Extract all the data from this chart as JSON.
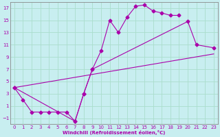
{
  "xlabel": "Windchill (Refroidissement éolien,°C)",
  "bg_color": "#c8eef0",
  "grid_color": "#aaddcc",
  "line_color": "#aa00aa",
  "xlim": [
    -0.5,
    23.5
  ],
  "ylim": [
    -2,
    18
  ],
  "xticks": [
    0,
    1,
    2,
    3,
    4,
    5,
    6,
    7,
    8,
    9,
    10,
    11,
    12,
    13,
    14,
    15,
    16,
    17,
    18,
    19,
    20,
    21,
    22,
    23
  ],
  "yticks": [
    -1,
    1,
    3,
    5,
    7,
    9,
    11,
    13,
    15,
    17
  ],
  "line1_x": [
    0,
    1,
    2,
    3,
    4,
    5,
    6,
    7,
    8,
    9,
    10,
    11,
    12,
    13,
    14,
    15,
    16,
    17,
    18,
    19
  ],
  "line1_y": [
    4,
    2,
    0,
    0,
    0,
    0,
    0,
    -1.5,
    3.0,
    7.0,
    10.0,
    15.0,
    13.0,
    15.5,
    17.3,
    17.5,
    16.5,
    16.2,
    15.8,
    15.8
  ],
  "line2_x": [
    0,
    7,
    8,
    9,
    20,
    21,
    23
  ],
  "line2_y": [
    4,
    -1.5,
    3.0,
    7.0,
    14.8,
    11.0,
    10.5
  ],
  "line3_x": [
    0,
    23
  ],
  "line3_y": [
    4,
    9.5
  ]
}
